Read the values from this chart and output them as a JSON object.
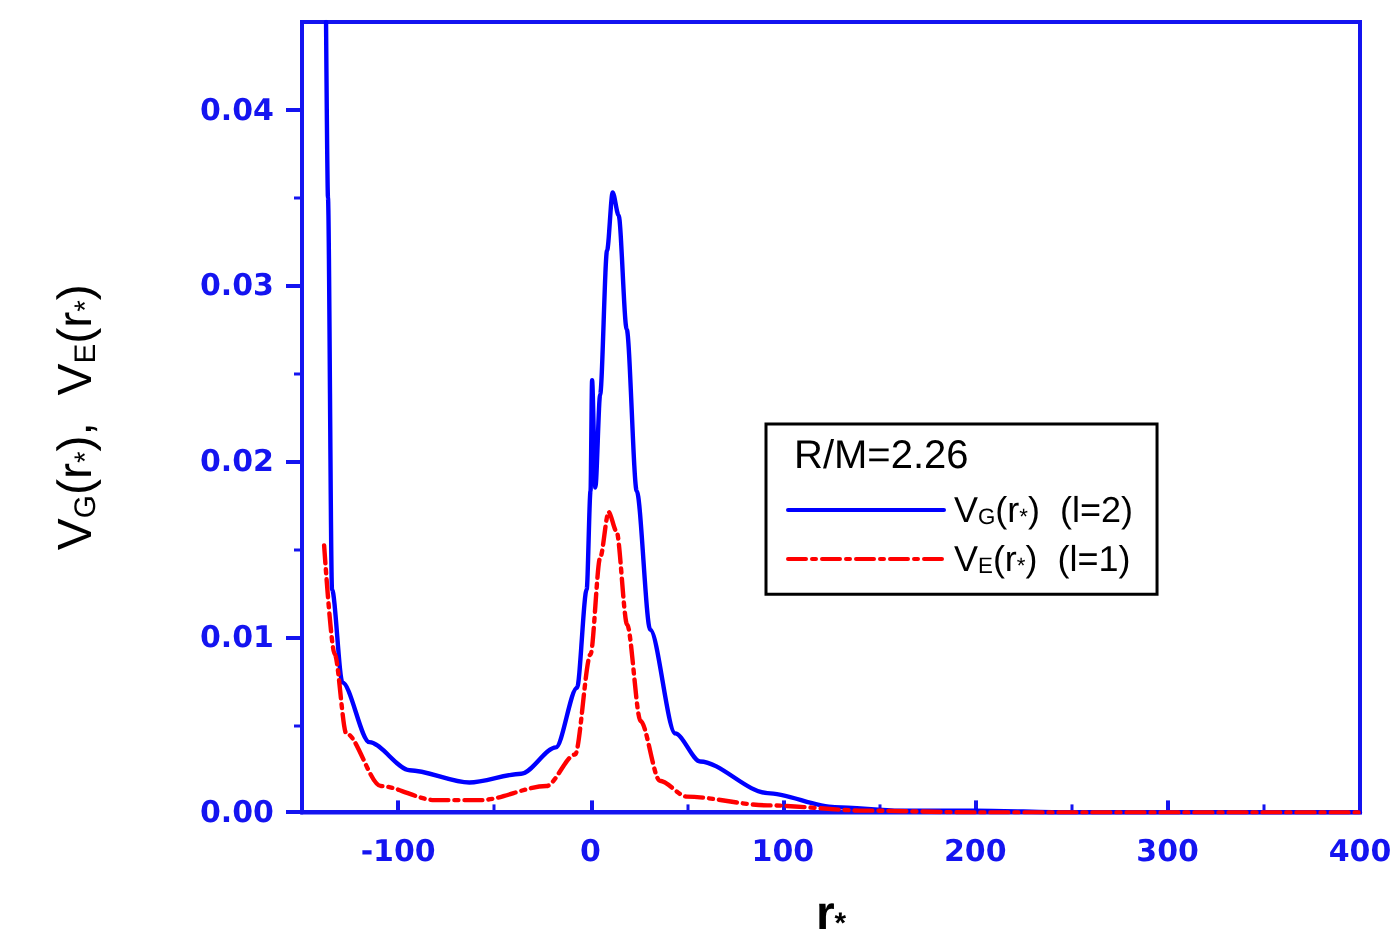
{
  "chart_data": {
    "type": "line",
    "xlabel": "r$_{*}$",
    "ylabel": "V$_{G}$(r$_{*}$),  V$_{E}$(r$_{*}$)",
    "legend_title": "R/M=2.26",
    "legend": "right",
    "grid": false,
    "marker": "none",
    "xlim": [
      -150,
      400
    ],
    "xticks": [
      -100,
      0,
      100,
      200,
      300,
      400
    ],
    "ylim": [
      0,
      0.045
    ],
    "yticks": [
      {
        "value": 0,
        "label": "0.00"
      },
      {
        "value": 0.01,
        "label": "0.01"
      },
      {
        "value": 0.02,
        "label": "0.02"
      },
      {
        "value": 0.03,
        "label": "0.03"
      },
      {
        "value": 0.04,
        "label": "0.04"
      }
    ],
    "series": [
      {
        "name": "V$_{G}$(r$_{*}$)  (l=2)",
        "color": "#0000ff",
        "line_style": "solid",
        "x": [
          -137.5,
          -136.5,
          -134.4,
          -129,
          -115,
          -94,
          -63,
          -36,
          -18,
          -7,
          -2,
          0,
          0.8,
          2.5,
          5,
          8.6,
          11.5,
          14.6,
          18.8,
          24,
          31,
          44,
          57,
          92,
          127,
          161,
          200,
          250,
          300,
          350,
          400
        ],
        "values": [
          0.045,
          0.035,
          0.0127,
          0.0074,
          0.004,
          0.0024,
          0.0017,
          0.0022,
          0.0037,
          0.0071,
          0.0127,
          0.0183,
          0.0246,
          0.0185,
          0.0238,
          0.032,
          0.0353,
          0.034,
          0.0275,
          0.0183,
          0.0104,
          0.0045,
          0.0029,
          0.0011,
          0.0003,
          0.0001,
          0.0001,
          0,
          0,
          0,
          0
        ]
      },
      {
        "name": "V$_{E}$(r$_{*}$)  (l=1)",
        "color": "#ff0000",
        "line_style": "dashdot",
        "x": [
          -138.5,
          -133,
          -127,
          -109,
          -81,
          -57,
          -23,
          -8,
          0,
          5,
          9.4,
          13.5,
          19,
          26,
          36,
          50,
          92,
          143,
          200,
          250,
          300,
          350,
          400
        ],
        "values": [
          0.0152,
          0.009,
          0.0045,
          0.0015,
          0.0007,
          0.0007,
          0.0015,
          0.0033,
          0.009,
          0.0145,
          0.0171,
          0.016,
          0.0107,
          0.0052,
          0.0018,
          0.0009,
          0.0004,
          0.0001,
          0,
          0,
          0,
          0,
          0
        ]
      }
    ]
  }
}
